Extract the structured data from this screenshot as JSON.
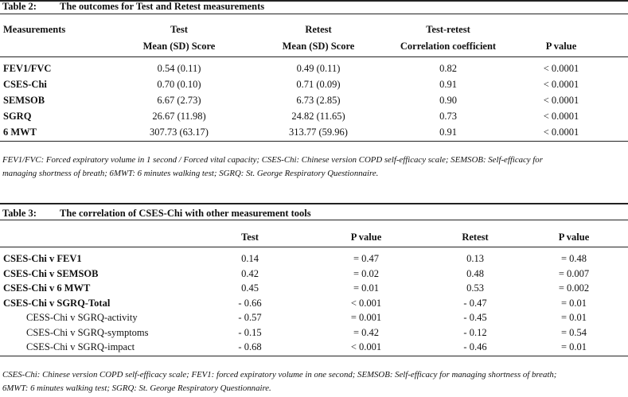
{
  "table2": {
    "label": "Table 2:",
    "title": "The outcomes for Test and Retest measurements",
    "columns": [
      [
        "Measurements"
      ],
      [
        "Test",
        "Mean (SD) Score"
      ],
      [
        "Retest",
        "Mean (SD) Score"
      ],
      [
        "Test-retest",
        "Correlation coefficient"
      ],
      [
        "P value"
      ]
    ],
    "rows": [
      [
        "FEV1/FVC",
        "0.54 (0.11)",
        "0.49 (0.11)",
        "0.82",
        "< 0.0001"
      ],
      [
        "CSES-Chi",
        "0.70 (0.10)",
        "0.71 (0.09)",
        "0.91",
        "< 0.0001"
      ],
      [
        "SEMSOB",
        "6.67 (2.73)",
        "6.73 (2.85)",
        "0.90",
        "< 0.0001"
      ],
      [
        "SGRQ",
        "26.67 (11.98)",
        "24.82 (11.65)",
        "0.73",
        "< 0.0001"
      ],
      [
        "6 MWT",
        "307.73 (63.17)",
        "313.77 (59.96)",
        "0.91",
        "< 0.0001"
      ]
    ],
    "note": [
      "FEV1/FVC: Forced expiratory volume in 1 second / Forced vital capacity; CSES-Chi: Chinese version COPD self-efficacy scale; SEMSOB: Self-efficacy for",
      "managing shortness of breath; 6MWT: 6 minutes walking test; SGRQ: St. George Respiratory Questionnaire."
    ]
  },
  "table3": {
    "label": "Table 3:",
    "title": "The correlation of CSES-Chi with other measurement tools",
    "columns": [
      "Test",
      "P value",
      "Retest",
      "P value"
    ],
    "rows": [
      [
        "CSES-Chi v FEV1",
        "0.14",
        "= 0.47",
        "0.13",
        "= 0.48"
      ],
      [
        "CSES-Chi v SEMSOB",
        "0.42",
        "= 0.02",
        "0.48",
        "= 0.007"
      ],
      [
        "CSES-Chi v 6 MWT",
        "0.45",
        "= 0.01",
        "0.53",
        "= 0.002"
      ],
      [
        "CSES-Chi v SGRQ-Total",
        "- 0.66",
        "< 0.001",
        "- 0.47",
        "= 0.01"
      ],
      [
        "CESS-Chi v SGRQ-activity",
        "- 0.57",
        "= 0.001",
        "- 0.45",
        "= 0.01"
      ],
      [
        "CSES-Chi v SGRQ-symptoms",
        "- 0.15",
        "= 0.42",
        "- 0.12",
        "= 0.54"
      ],
      [
        "CSES-Chi v SGRQ-impact",
        "- 0.68",
        "< 0.001",
        "- 0.46",
        "= 0.01"
      ]
    ],
    "note": [
      "CSES-Chi: Chinese version COPD self-efficacy scale; FEV1: forced expiratory volume in one second; SEMSOB: Self-efficacy for managing shortness of breath;",
      "6MWT: 6 minutes walking test; SGRQ: St. George Respiratory Questionnaire."
    ]
  }
}
